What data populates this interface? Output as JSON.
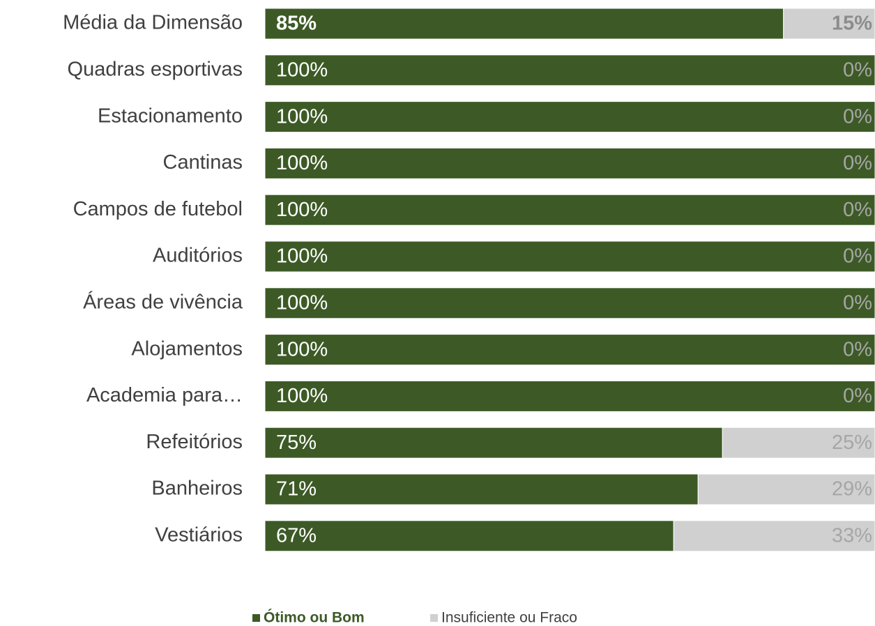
{
  "chart_data": {
    "type": "stacked-bar-horizontal",
    "categories": [
      "Média da Dimensão",
      "Quadras esportivas",
      "Estacionamento",
      "Cantinas",
      "Campos de futebol",
      "Auditórios",
      "Áreas de vivência",
      "Alojamentos",
      "Academia para…",
      "Refeitórios",
      "Banheiros",
      "Vestiários"
    ],
    "series": [
      {
        "name": "Ótimo ou Bom",
        "color": "#3d5a26",
        "values": [
          85,
          100,
          100,
          100,
          100,
          100,
          100,
          100,
          100,
          75,
          71,
          67
        ],
        "value_labels": [
          "85%",
          "100%",
          "100%",
          "100%",
          "100%",
          "100%",
          "100%",
          "100%",
          "100%",
          "75%",
          "71%",
          "67%"
        ]
      },
      {
        "name": "Insuficiente ou Fraco",
        "color": "#d0d0d0",
        "values": [
          15,
          0,
          0,
          0,
          0,
          0,
          0,
          0,
          0,
          25,
          29,
          33
        ],
        "value_labels": [
          "15%",
          "0%",
          "0%",
          "0%",
          "0%",
          "0%",
          "0%",
          "0%",
          "0%",
          "25%",
          "29%",
          "33%"
        ]
      }
    ],
    "legend": "bottom"
  }
}
